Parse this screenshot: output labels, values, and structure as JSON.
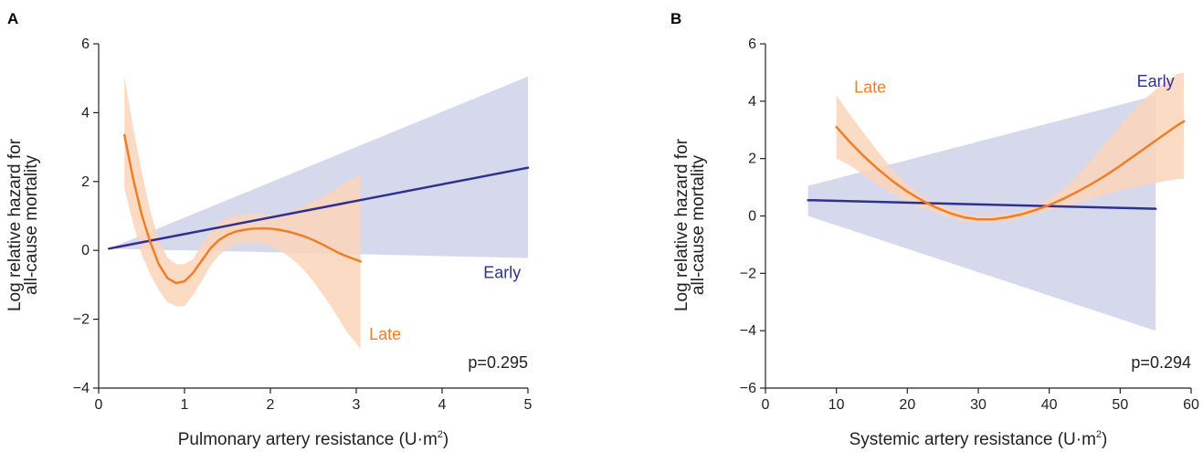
{
  "chart_data": [
    {
      "type": "line",
      "panel": "A",
      "xlabel": "Pulmonary artery resistance (U·m²)",
      "xlabel_main": "Pulmonary artery resistance (U·m",
      "xlabel_sup": "2",
      "xlabel_tail": ")",
      "ylabel_lines": [
        "Log relative hazard for",
        "all-cause mortality"
      ],
      "xlim": [
        0,
        5
      ],
      "ylim": [
        -4,
        6
      ],
      "xticks": [
        0,
        1,
        2,
        3,
        4,
        5
      ],
      "yticks": [
        -4,
        -2,
        0,
        2,
        4,
        6
      ],
      "ytick_labels": [
        "−4",
        "−2",
        "0",
        "2",
        "4",
        "6"
      ],
      "annotation": "p=0.295",
      "series": [
        {
          "name": "Early",
          "color": "#2e3192",
          "band_color": "#d6d8ec",
          "x": [
            0.12,
            5.0
          ],
          "y": [
            0.05,
            2.4
          ],
          "ci_upper": [
            0.05,
            5.05
          ],
          "ci_lower": [
            0.05,
            -0.22
          ],
          "label_pos": [
            4.7,
            -0.8
          ]
        },
        {
          "name": "Late",
          "color": "#f07e26",
          "band_color": "#fbd5bb",
          "x": [
            0.3,
            0.4,
            0.5,
            0.6,
            0.7,
            0.8,
            0.9,
            1.0,
            1.1,
            1.2,
            1.3,
            1.4,
            1.5,
            1.6,
            1.7,
            1.8,
            1.9,
            2.0,
            2.1,
            2.2,
            2.3,
            2.4,
            2.5,
            2.6,
            2.7,
            2.8,
            2.9,
            3.05
          ],
          "y": [
            3.35,
            2.1,
            1.05,
            0.25,
            -0.4,
            -0.8,
            -0.95,
            -0.9,
            -0.65,
            -0.3,
            0.05,
            0.3,
            0.45,
            0.55,
            0.6,
            0.63,
            0.64,
            0.63,
            0.6,
            0.55,
            0.48,
            0.4,
            0.3,
            0.18,
            0.05,
            -0.08,
            -0.18,
            -0.32
          ],
          "ci_upper": [
            5.05,
            3.6,
            2.3,
            1.15,
            0.3,
            -0.2,
            -0.4,
            -0.4,
            -0.25,
            0.15,
            0.5,
            0.8,
            0.95,
            1.02,
            1.05,
            1.05,
            1.05,
            1.02,
            1.05,
            1.1,
            1.2,
            1.3,
            1.42,
            1.55,
            1.7,
            1.85,
            2.0,
            2.2
          ],
          "ci_lower": [
            1.8,
            0.8,
            -0.1,
            -0.7,
            -1.15,
            -1.5,
            -1.62,
            -1.62,
            -1.3,
            -0.9,
            -0.45,
            -0.15,
            0.05,
            0.2,
            0.22,
            0.22,
            0.2,
            0.12,
            0.0,
            -0.15,
            -0.35,
            -0.6,
            -0.9,
            -1.25,
            -1.6,
            -2.0,
            -2.4,
            -2.85
          ],
          "label_pos": [
            3.15,
            -2.6
          ]
        }
      ]
    },
    {
      "type": "line",
      "panel": "B",
      "xlabel": "Systemic artery resistance (U·m²)",
      "xlabel_main": "Systemic artery resistance (U·m",
      "xlabel_sup": "2",
      "xlabel_tail": ")",
      "ylabel_lines": [
        "Log relative hazard for",
        "all-cause mortality"
      ],
      "xlim": [
        0,
        60
      ],
      "ylim": [
        -6,
        6
      ],
      "xticks": [
        0,
        10,
        20,
        30,
        40,
        50,
        60
      ],
      "yticks": [
        -6,
        -4,
        -2,
        0,
        2,
        4,
        6
      ],
      "ytick_labels": [
        "−6",
        "−4",
        "−2",
        "0",
        "2",
        "4",
        "6"
      ],
      "annotation": "p=0.294",
      "series": [
        {
          "name": "Early",
          "color": "#2e3192",
          "band_color": "#d6d8ec",
          "x": [
            6,
            55
          ],
          "y": [
            0.55,
            0.25
          ],
          "ci_upper": [
            1.05,
            4.2
          ],
          "ci_lower": [
            0.0,
            -4.0
          ],
          "label_pos": [
            55,
            4.5
          ]
        },
        {
          "name": "Late",
          "color": "#f07e26",
          "band_color": "#fbd5bb",
          "x": [
            10,
            12,
            14,
            16,
            18,
            20,
            22,
            24,
            26,
            28,
            30,
            32,
            34,
            36,
            38,
            40,
            42,
            44,
            46,
            48,
            50,
            52,
            54,
            56,
            58,
            59
          ],
          "y": [
            3.1,
            2.55,
            2.05,
            1.6,
            1.2,
            0.85,
            0.55,
            0.3,
            0.1,
            -0.05,
            -0.12,
            -0.12,
            -0.05,
            0.05,
            0.2,
            0.38,
            0.6,
            0.85,
            1.12,
            1.42,
            1.75,
            2.1,
            2.45,
            2.8,
            3.15,
            3.3
          ],
          "ci_upper": [
            4.2,
            3.5,
            2.85,
            2.2,
            1.6,
            1.1,
            0.7,
            0.45,
            0.25,
            0.1,
            0.0,
            0.0,
            0.05,
            0.15,
            0.35,
            0.6,
            0.95,
            1.4,
            1.95,
            2.55,
            3.15,
            3.7,
            4.2,
            4.6,
            4.95,
            5.0
          ],
          "ci_lower": [
            2.0,
            1.75,
            1.4,
            1.05,
            0.75,
            0.5,
            0.3,
            0.1,
            -0.05,
            -0.18,
            -0.22,
            -0.22,
            -0.18,
            -0.08,
            0.05,
            0.18,
            0.3,
            0.45,
            0.6,
            0.75,
            0.9,
            1.0,
            1.1,
            1.2,
            1.28,
            1.3
          ],
          "label_pos": [
            12.5,
            4.3
          ]
        }
      ]
    }
  ]
}
